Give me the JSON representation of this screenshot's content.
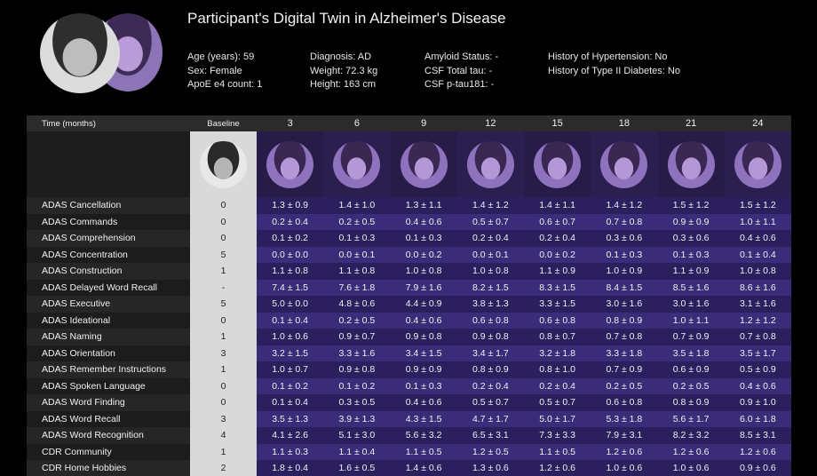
{
  "header": {
    "title": "Participant's Digital Twin in Alzheimer's Disease",
    "fields": [
      [
        "Age (years): 59",
        "Sex: Female",
        "ApoE e4 count: 1"
      ],
      [
        "Diagnosis: AD",
        "Weight: 72.3 kg",
        "Height: 163 cm"
      ],
      [
        "Amyloid Status: -",
        "CSF Total tau: -",
        "CSF p-tau181: -"
      ],
      [
        "History of Hypertension: No",
        "History of Type II Diabetes: No"
      ]
    ]
  },
  "table": {
    "columns": [
      "Time (months)",
      "Baseline",
      "3",
      "6",
      "9",
      "12",
      "15",
      "18",
      "21",
      "24"
    ],
    "rows": [
      [
        "ADAS Cancellation",
        "0",
        "1.3 ± 0.9",
        "1.4 ± 1.0",
        "1.3 ± 1.1",
        "1.4 ± 1.2",
        "1.4 ± 1.1",
        "1.4 ± 1.2",
        "1.5 ± 1.2",
        "1.5 ± 1.2"
      ],
      [
        "ADAS Commands",
        "0",
        "0.2 ± 0.4",
        "0.2 ± 0.5",
        "0.4 ± 0.6",
        "0.5 ± 0.7",
        "0.6 ± 0.7",
        "0.7 ± 0.8",
        "0.9 ± 0.9",
        "1.0 ± 1.1"
      ],
      [
        "ADAS Comprehension",
        "0",
        "0.1 ± 0.2",
        "0.1 ± 0.3",
        "0.1 ± 0.3",
        "0.2 ± 0.4",
        "0.2 ± 0.4",
        "0.3 ± 0.6",
        "0.3 ± 0.6",
        "0.4 ± 0.6"
      ],
      [
        "ADAS Concentration",
        "5",
        "0.0 ± 0.0",
        "0.0 ± 0.1",
        "0.0 ± 0.2",
        "0.0 ± 0.1",
        "0.0 ± 0.2",
        "0.1 ± 0.3",
        "0.1 ± 0.3",
        "0.1 ± 0.4"
      ],
      [
        "ADAS Construction",
        "1",
        "1.1 ± 0.8",
        "1.1 ± 0.8",
        "1.0 ± 0.8",
        "1.0 ± 0.8",
        "1.1 ± 0.9",
        "1.0 ± 0.9",
        "1.1 ± 0.9",
        "1.0 ± 0.8"
      ],
      [
        "ADAS Delayed Word Recall",
        "-",
        "7.4 ± 1.5",
        "7.6 ± 1.8",
        "7.9 ± 1.6",
        "8.2 ± 1.5",
        "8.3 ± 1.5",
        "8.4 ± 1.5",
        "8.5 ± 1.6",
        "8.6 ± 1.6"
      ],
      [
        "ADAS Executive",
        "5",
        "5.0 ± 0.0",
        "4.8 ± 0.6",
        "4.4 ± 0.9",
        "3.8 ± 1.3",
        "3.3 ± 1.5",
        "3.0 ± 1.6",
        "3.0 ± 1.6",
        "3.1 ± 1.6"
      ],
      [
        "ADAS Ideational",
        "0",
        "0.1 ± 0.4",
        "0.2 ± 0.5",
        "0.4 ± 0.6",
        "0.6 ± 0.8",
        "0.6 ± 0.8",
        "0.8 ± 0.9",
        "1.0 ± 1.1",
        "1.2 ± 1.2"
      ],
      [
        "ADAS Naming",
        "1",
        "1.0 ± 0.6",
        "0.9 ± 0.7",
        "0.9 ± 0.8",
        "0.9 ± 0.8",
        "0.8 ± 0.7",
        "0.7 ± 0.8",
        "0.7 ± 0.9",
        "0.7 ± 0.8"
      ],
      [
        "ADAS Orientation",
        "3",
        "3.2 ± 1.5",
        "3.3 ± 1.6",
        "3.4 ± 1.5",
        "3.4 ± 1.7",
        "3.2 ± 1.8",
        "3.3 ± 1.8",
        "3.5 ± 1.8",
        "3.5 ± 1.7"
      ],
      [
        "ADAS Remember Instructions",
        "1",
        "1.0 ± 0.7",
        "0.9 ± 0.8",
        "0.9 ± 0.9",
        "0.8 ± 0.9",
        "0.8 ± 1.0",
        "0.7 ± 0.9",
        "0.6 ± 0.9",
        "0.5 ± 0.9"
      ],
      [
        "ADAS Spoken Language",
        "0",
        "0.1 ± 0.2",
        "0.1 ± 0.2",
        "0.1 ± 0.3",
        "0.2 ± 0.4",
        "0.2 ± 0.4",
        "0.2 ± 0.5",
        "0.2 ± 0.5",
        "0.4 ± 0.6"
      ],
      [
        "ADAS Word Finding",
        "0",
        "0.1 ± 0.4",
        "0.3 ± 0.5",
        "0.4 ± 0.6",
        "0.5 ± 0.7",
        "0.5 ± 0.7",
        "0.6 ± 0.8",
        "0.8 ± 0.9",
        "0.9 ± 1.0"
      ],
      [
        "ADAS Word Recall",
        "3",
        "3.5 ± 1.3",
        "3.9 ± 1.3",
        "4.3 ± 1.5",
        "4.7 ± 1.7",
        "5.0 ± 1.7",
        "5.3 ± 1.8",
        "5.6 ± 1.7",
        "6.0 ± 1.8"
      ],
      [
        "ADAS Word Recognition",
        "4",
        "4.1 ± 2.6",
        "5.1 ± 3.0",
        "5.6 ± 3.2",
        "6.5 ± 3.1",
        "7.3 ± 3.3",
        "7.9 ± 3.1",
        "8.2 ± 3.2",
        "8.5 ± 3.1"
      ],
      [
        "CDR Community",
        "1",
        "1.1 ± 0.3",
        "1.1 ± 0.4",
        "1.1 ± 0.5",
        "1.2 ± 0.5",
        "1.1 ± 0.5",
        "1.2 ± 0.6",
        "1.2 ± 0.6",
        "1.2 ± 0.6"
      ],
      [
        "CDR Home Hobbies",
        "2",
        "1.8 ± 0.4",
        "1.6 ± 0.5",
        "1.4 ± 0.6",
        "1.3 ± 0.6",
        "1.2 ± 0.6",
        "1.0 ± 0.6",
        "1.0 ± 0.6",
        "0.9 ± 0.6"
      ]
    ]
  }
}
